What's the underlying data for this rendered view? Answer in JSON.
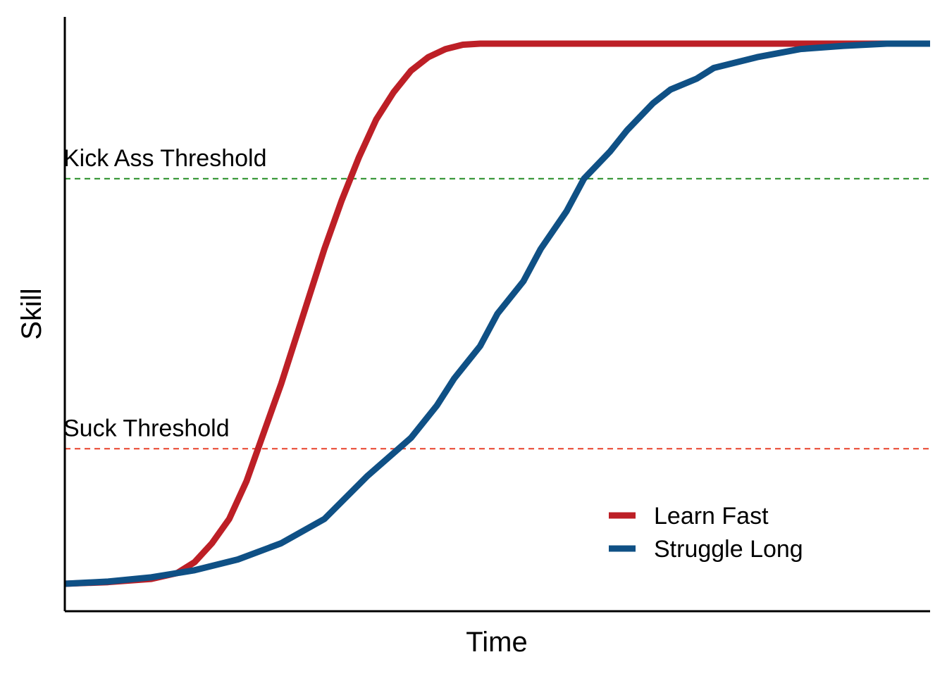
{
  "chart_data": {
    "type": "line",
    "title": "",
    "xlabel": "Time",
    "ylabel": "Skill",
    "xlim": [
      0,
      100
    ],
    "ylim": [
      0,
      1
    ],
    "grid": false,
    "legend_position": "bottom-right",
    "thresholds": [
      {
        "label": "Kick Ass Threshold",
        "y": 0.75,
        "color": "#228B22"
      },
      {
        "label": "Suck Threshold",
        "y": 0.25,
        "color": "#E8412A"
      }
    ],
    "series": [
      {
        "name": "Learn Fast",
        "color": "#BD1F26",
        "x": [
          0,
          5,
          10,
          13,
          15,
          17,
          19,
          21,
          23,
          25,
          27,
          28,
          30,
          32,
          34,
          36,
          38,
          40,
          42,
          44,
          46,
          48,
          50,
          55,
          60,
          70,
          100
        ],
        "y": [
          0.0,
          0.003,
          0.009,
          0.02,
          0.04,
          0.075,
          0.12,
          0.19,
          0.28,
          0.37,
          0.47,
          0.52,
          0.62,
          0.71,
          0.79,
          0.86,
          0.91,
          0.95,
          0.975,
          0.99,
          0.998,
          1.0,
          1.0,
          1.0,
          1.0,
          1.0,
          1.0
        ]
      },
      {
        "name": "Struggle Long",
        "color": "#0F5085",
        "x": [
          0,
          5,
          10,
          15,
          20,
          25,
          30,
          35,
          40,
          43,
          45,
          48,
          50,
          53,
          55,
          58,
          60,
          63,
          65,
          68,
          70,
          73,
          75,
          80,
          85,
          90,
          95,
          100
        ],
        "y": [
          0.0,
          0.004,
          0.012,
          0.025,
          0.045,
          0.075,
          0.12,
          0.2,
          0.27,
          0.33,
          0.38,
          0.44,
          0.5,
          0.56,
          0.62,
          0.69,
          0.75,
          0.8,
          0.84,
          0.89,
          0.915,
          0.935,
          0.955,
          0.975,
          0.99,
          0.996,
          1.0,
          1.0
        ]
      }
    ]
  }
}
